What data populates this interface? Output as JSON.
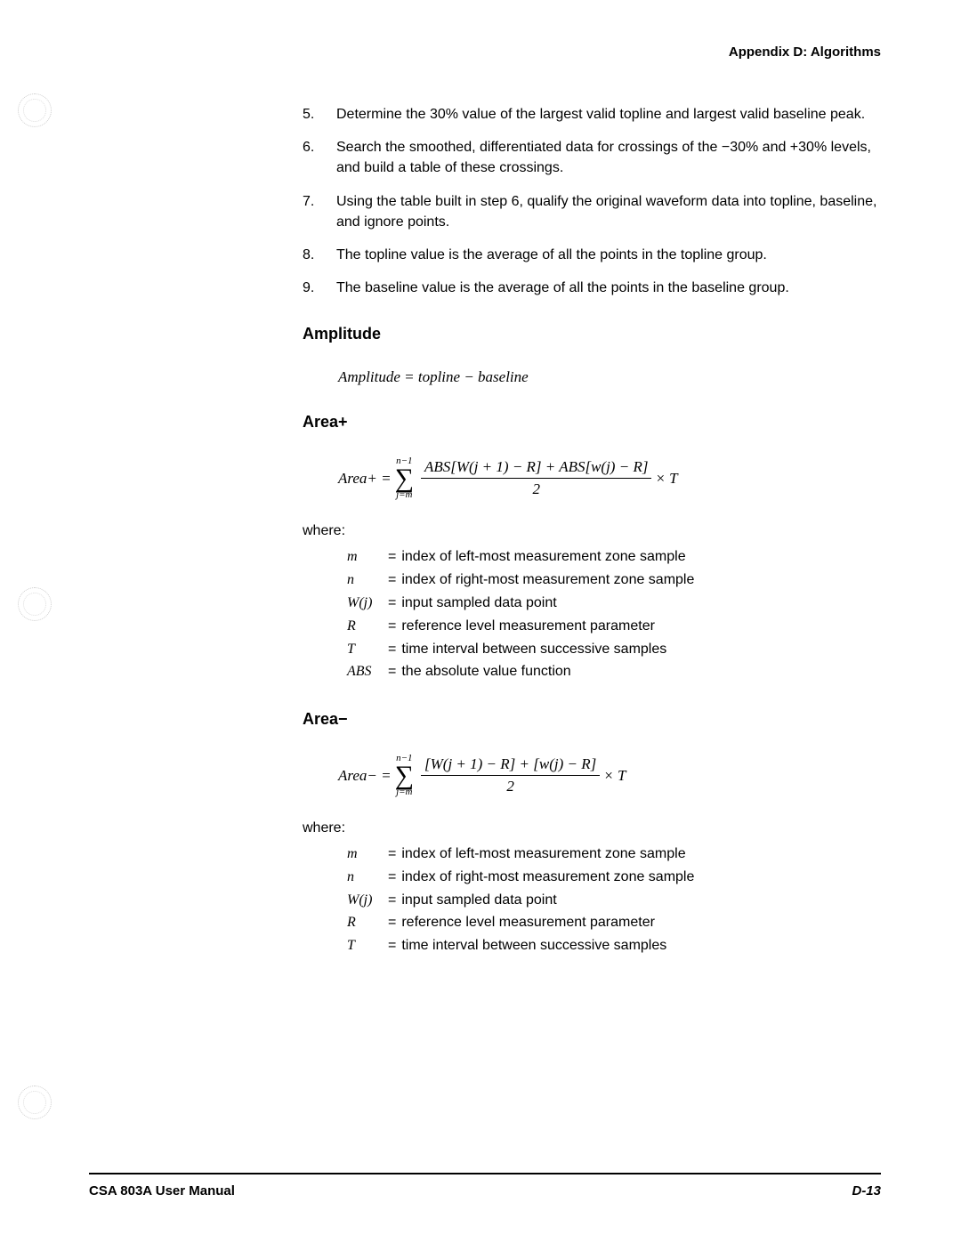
{
  "header": "Appendix D: Algorithms",
  "items": [
    {
      "num": "5.",
      "text": "Determine the 30% value of the largest valid topline and largest valid baseline peak."
    },
    {
      "num": "6.",
      "text": "Search the smoothed, differentiated data for crossings of the −30% and +30% levels, and build a table of these crossings."
    },
    {
      "num": "7.",
      "text": "Using the table built in step 6, qualify the original waveform data into topline, baseline, and ignore points."
    },
    {
      "num": "8.",
      "text": "The topline value is the average of all the points in the topline group."
    },
    {
      "num": "9.",
      "text": "The baseline value is the average of all the points in the baseline group."
    }
  ],
  "amplitude": {
    "heading": "Amplitude",
    "formula": "Amplitude = topline − baseline"
  },
  "areaPlus": {
    "heading": "Area+",
    "lhs": "Area+  =",
    "sumTop": "n−1",
    "sumBot": "j=m",
    "fracTop": "ABS[W(j + 1) − R] + ABS[w(j) − R]",
    "fracBot": "2",
    "tail": "× T",
    "where": "where:",
    "defs": [
      {
        "sym": "m",
        "txt": "index of left-most measurement zone sample"
      },
      {
        "sym": "n",
        "txt": "index of right-most measurement zone sample"
      },
      {
        "sym": "W(j)",
        "txt": "input sampled data point"
      },
      {
        "sym": "R",
        "txt": "reference level measurement parameter"
      },
      {
        "sym": "T",
        "txt": "time interval between successive samples"
      },
      {
        "sym": "ABS",
        "txt": "the absolute value function"
      }
    ]
  },
  "areaMinus": {
    "heading": "Area−",
    "lhs": "Area−  =",
    "sumTop": "n−1",
    "sumBot": "j=m",
    "fracTop": "[W(j + 1) − R] + [w(j) − R]",
    "fracBot": "2",
    "tail": "× T",
    "where": "where:",
    "defs": [
      {
        "sym": "m",
        "txt": "index of left-most measurement zone sample"
      },
      {
        "sym": "n",
        "txt": "index of right-most measurement zone sample"
      },
      {
        "sym": "W(j)",
        "txt": "input sampled data point"
      },
      {
        "sym": "R",
        "txt": "reference level measurement parameter"
      },
      {
        "sym": "T",
        "txt": "time interval between successive samples"
      }
    ]
  },
  "footer": {
    "left": "CSA 803A User Manual",
    "right": "D-13"
  }
}
